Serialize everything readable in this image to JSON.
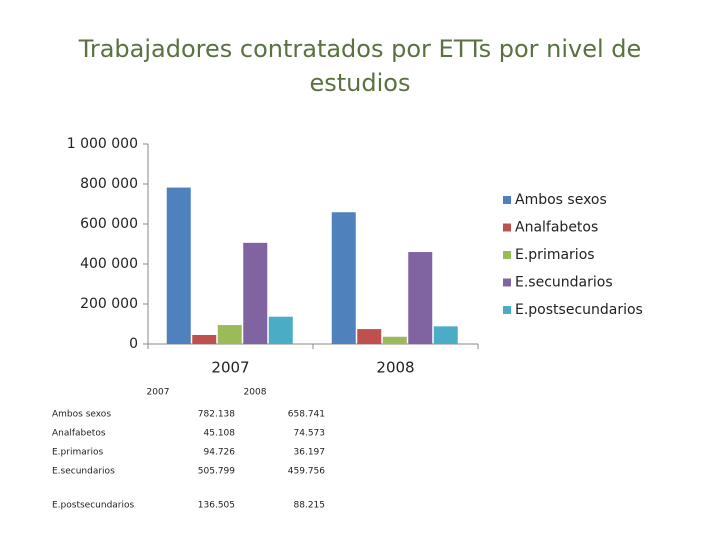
{
  "chart_data": {
    "type": "bar",
    "title": "Trabajadores contratados por ETTs por nivel de estudios",
    "categories": [
      "2007",
      "2008"
    ],
    "series": [
      {
        "name": "Ambos sexos",
        "color": "#4f81bd",
        "values": [
          782138,
          658741
        ]
      },
      {
        "name": "Analfabetos",
        "color": "#c0504d",
        "values": [
          45108,
          74573
        ]
      },
      {
        "name": "E.primarios",
        "color": "#9bbb59",
        "values": [
          94726,
          36197
        ]
      },
      {
        "name": "E.secundarios",
        "color": "#8064a2",
        "values": [
          505799,
          459756
        ]
      },
      {
        "name": "E.postsecundarios",
        "color": "#4bacc6",
        "values": [
          136505,
          88215
        ]
      }
    ],
    "ylim": [
      0,
      1000000
    ],
    "yticks": [
      0,
      {
        "value": 200000,
        "label": "200 000"
      },
      {
        "value": 400000,
        "label": "400 000"
      },
      {
        "value": 600000,
        "label": "600 000"
      },
      {
        "value": 800000,
        "label": "800 000"
      },
      {
        "value": 1000000,
        "label": "1 000 000"
      }
    ],
    "grid": false,
    "legend": "right"
  },
  "table": {
    "columns": [
      "2007",
      "2008"
    ],
    "rows": [
      {
        "label": "Ambos sexos",
        "values": [
          "782.138",
          "658.741"
        ]
      },
      {
        "label": "Analfabetos",
        "values": [
          "45.108",
          "74.573"
        ]
      },
      {
        "label": "E.primarios",
        "values": [
          "94.726",
          "36.197"
        ]
      },
      {
        "label": "E.secundarios",
        "values": [
          "505.799",
          "459.756"
        ]
      },
      {
        "label": "E.postsecundarios",
        "values": [
          "136.505",
          "88.215"
        ]
      }
    ]
  }
}
